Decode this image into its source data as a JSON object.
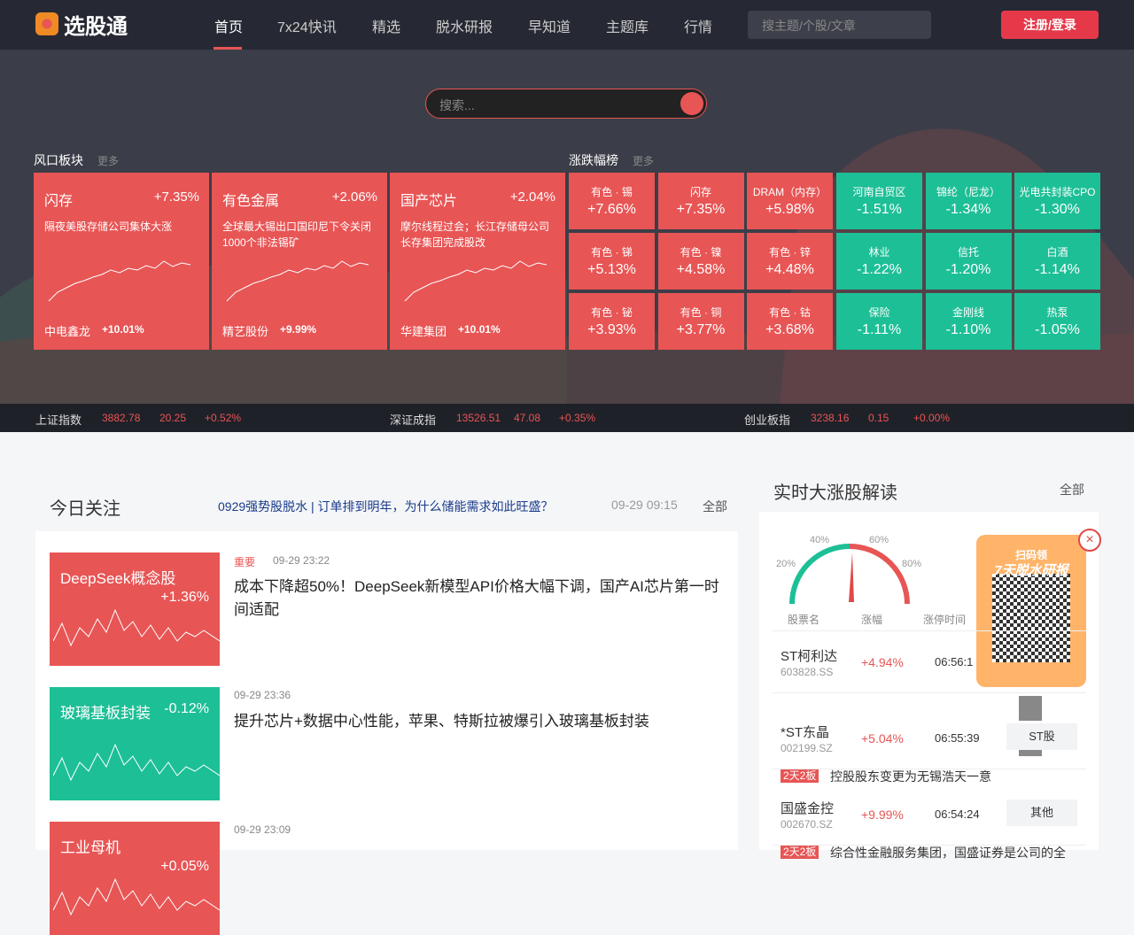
{
  "nav": {
    "logo": "选股通",
    "items": [
      "首页",
      "7x24快讯",
      "精选",
      "脱水研报",
      "早知道",
      "主题库",
      "行情"
    ],
    "search_placeholder": "搜主题/个股/文章",
    "login": "注册/登录"
  },
  "hero": {
    "search_placeholder": "搜索..."
  },
  "hot_sectors": {
    "title": "风口板块",
    "more": "更多",
    "cards": [
      {
        "name": "闪存",
        "change": "+7.35%",
        "desc": "隔夜美股存储公司集体大涨",
        "stock": "中电鑫龙",
        "stock_change": "+10.01%"
      },
      {
        "name": "有色金属",
        "change": "+2.06%",
        "desc": "全球最大锡出口国印尼下令关闭1000个非法锡矿",
        "stock": "精艺股份",
        "stock_change": "+9.99%"
      },
      {
        "name": "国产芯片",
        "change": "+2.04%",
        "desc": "摩尔线程过会；长江存储母公司长存集团完成股改",
        "stock": "华建集团",
        "stock_change": "+10.01%"
      }
    ]
  },
  "ranking": {
    "title": "涨跌幅榜",
    "more": "更多",
    "up": [
      {
        "name": "有色 · 锡",
        "change": "+7.66%"
      },
      {
        "name": "闪存",
        "change": "+7.35%"
      },
      {
        "name": "DRAM（内存）",
        "change": "+5.98%"
      },
      {
        "name": "有色 · 锑",
        "change": "+5.13%"
      },
      {
        "name": "有色 · 镍",
        "change": "+4.58%"
      },
      {
        "name": "有色 · 锌",
        "change": "+4.48%"
      },
      {
        "name": "有色 · 铋",
        "change": "+3.93%"
      },
      {
        "name": "有色 · 铜",
        "change": "+3.77%"
      },
      {
        "name": "有色 · 钴",
        "change": "+3.68%"
      }
    ],
    "down": [
      {
        "name": "河南自贸区",
        "change": "-1.51%"
      },
      {
        "name": "锦纶（尼龙）",
        "change": "-1.34%"
      },
      {
        "name": "光电共封装CPO",
        "change": "-1.30%"
      },
      {
        "name": "林业",
        "change": "-1.22%"
      },
      {
        "name": "信托",
        "change": "-1.20%"
      },
      {
        "name": "白酒",
        "change": "-1.14%"
      },
      {
        "name": "保险",
        "change": "-1.11%"
      },
      {
        "name": "金刚线",
        "change": "-1.10%"
      },
      {
        "name": "热泵",
        "change": "-1.05%"
      }
    ]
  },
  "indices": [
    {
      "name": "上证指数",
      "value": "3882.78",
      "change": "20.25",
      "pct": "+0.52%"
    },
    {
      "name": "深证成指",
      "value": "13526.51",
      "change": "47.08",
      "pct": "+0.35%"
    },
    {
      "name": "创业板指",
      "value": "3238.16",
      "change": "0.15",
      "pct": "+0.00%"
    }
  ],
  "today_focus": {
    "title": "今日关注",
    "headline": "0929强势股脱水 | 订单排到明年，为什么储能需求如此旺盛？",
    "time": "09-29 09:15",
    "all": "全部"
  },
  "news": [
    {
      "sector": "DeepSeek概念股",
      "sector_change": "+1.36%",
      "label": "重要",
      "time": "09-29 23:22",
      "title": "成本下降超50%！DeepSeek新模型API价格大幅下调，国产AI芯片第一时间适配"
    },
    {
      "sector": "玻璃基板封装",
      "sector_change": "-0.12%",
      "time": "09-29 23:36",
      "title": "提升芯片+数据中心性能，苹果、特斯拉被爆引入玻璃基板封装"
    },
    {
      "sector": "工业母机",
      "sector_change": "+0.05%",
      "time": "09-29 23:09"
    }
  ],
  "realtime": {
    "title": "实时大涨股解读",
    "all": "全部",
    "gauge_labels": [
      "20%",
      "40%",
      "60%",
      "80%"
    ],
    "columns": [
      "股票名",
      "涨幅",
      "涨停时间"
    ],
    "rows": [
      {
        "name": "ST柯利达",
        "code": "603828.SS",
        "change": "+4.94%",
        "time": "06:56:1"
      },
      {
        "name": "*ST东晶",
        "code": "002199.SZ",
        "change": "+5.04%",
        "time": "06:55:39",
        "tag": "ST股",
        "badge": "2天2板",
        "reason": "控股股东变更为无锡浩天一意"
      },
      {
        "name": "国盛金控",
        "code": "002670.SZ",
        "change": "+9.99%",
        "time": "06:54:24",
        "tag": "其他",
        "badge": "2天2板",
        "reason": "综合性金融服务集团，国盛证券是公司的全"
      }
    ]
  },
  "popup": {
    "line1": "扫码领",
    "line2": "7天脱水研报"
  }
}
